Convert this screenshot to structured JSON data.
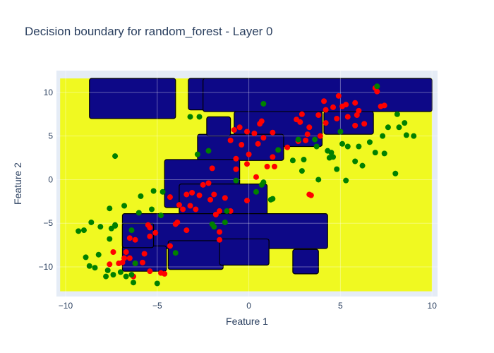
{
  "chart_data": {
    "type": "scatter",
    "title": "Decision boundary for random_forest - Layer 0",
    "xlabel": "Feature 1",
    "ylabel": "Feature 2",
    "xlim": [
      -10.5,
      10.3
    ],
    "ylim": [
      -13.4,
      12.5
    ],
    "x_ticks": [
      -10,
      -5,
      0,
      5,
      10
    ],
    "x_tick_labels": [
      "−10",
      "−5",
      "0",
      "5",
      "10"
    ],
    "y_ticks": [
      -10,
      -5,
      0,
      5,
      10
    ],
    "y_tick_labels": [
      "−10",
      "−5",
      "0",
      "5",
      "10"
    ],
    "grid": true,
    "legend": "none",
    "colors": {
      "plot_bg": "#e5ecf6",
      "region_yellow": "#f0f921",
      "region_navy": "#0d0887",
      "boundary": "#000000",
      "class_red": "#ff0000",
      "class_green": "#008000",
      "text": "#2a3f5f"
    },
    "decision_regions": {
      "extent": {
        "x": [
          -10.3,
          10
        ],
        "y": [
          -12.8,
          11.6
        ]
      },
      "background_class": "yellow",
      "navy_rectangles": [
        [
          -8.7,
          11.6,
          -4.0,
          7.0
        ],
        [
          -3.3,
          11.6,
          -2.1,
          8.0
        ],
        [
          -2.5,
          11.6,
          10.0,
          7.8
        ],
        [
          -0.8,
          7.8,
          4.0,
          3.8
        ],
        [
          -2.8,
          5.2,
          1.9,
          2.2
        ],
        [
          -2.3,
          7.2,
          -1.0,
          5.0
        ],
        [
          4.1,
          7.8,
          6.8,
          5.2
        ],
        [
          -4.6,
          2.3,
          -0.5,
          -3.2
        ],
        [
          -3.8,
          -0.5,
          1.0,
          -4.2
        ],
        [
          -6.9,
          -3.9,
          4.3,
          -7.9
        ],
        [
          -4.4,
          -7.0,
          -1.4,
          -10.3
        ],
        [
          -1.6,
          -6.8,
          1.1,
          -9.8
        ],
        [
          2.4,
          -8.0,
          3.8,
          -10.8
        ],
        [
          -6.9,
          -7.6,
          -4.5,
          -10.5
        ],
        [
          -6.9,
          -5.0,
          -5.2,
          -7.8
        ]
      ]
    },
    "series": [
      {
        "class": "red",
        "x": [
          6.9,
          7.0,
          7.2,
          7.4,
          4.9,
          5.3,
          5.8,
          4.6,
          5.1,
          6.0,
          5.9,
          3.8,
          2.9,
          3.3,
          2.6,
          4.2,
          4.8,
          5.4,
          4.1,
          2.8,
          3.2,
          3.1,
          2.7,
          3.9,
          1.3,
          0.6,
          0.7,
          0.3,
          -0.5,
          -0.8,
          -0.1,
          0.8,
          -1.0,
          0.5,
          -0.4,
          0.0,
          -0.7,
          2.1,
          1.3,
          1.4,
          1.0,
          -0.7,
          -0.1,
          0.4,
          -2.0,
          -2.2,
          -2.5,
          -2.7,
          -3.1,
          -3.4,
          -4.3,
          -3.8,
          -2.1,
          -3.2,
          -1.3,
          -1.6,
          -1.8,
          -2.9,
          -3.6,
          -3.9,
          -4.0,
          -3.4,
          -1.6,
          -1.6,
          -1.0,
          -0.1,
          -1.9,
          -5.5,
          -5.4,
          -5.1,
          -5.4,
          -5.7,
          -6.2,
          -6.5,
          -6.7,
          -6.8,
          -6.9,
          -7.4,
          -6.2,
          -5.8,
          -6.5,
          -6.3,
          -7.1,
          -7.6,
          -5.4,
          -4.8,
          -4.6,
          -4.3,
          3.3,
          3.4,
          4.2,
          5.8,
          6.3
        ],
        "y": [
          10.5,
          10.1,
          8.4,
          8.5,
          9.6,
          8.6,
          8.8,
          8.3,
          8.4,
          7.9,
          7.4,
          7.4,
          7.5,
          6.0,
          6.9,
          6.5,
          7.0,
          7.2,
          9.0,
          6.6,
          5.2,
          4.5,
          4.4,
          5.0,
          5.4,
          6.4,
          6.7,
          5.3,
          6.0,
          5.7,
          5.5,
          4.8,
          4.5,
          4.1,
          4.0,
          2.9,
          2.4,
          3.7,
          2.6,
          1.5,
          1.5,
          1.2,
          1.8,
          0.3,
          1.3,
          -0.4,
          -0.6,
          -1.8,
          -1.5,
          -1.7,
          -2.0,
          -2.9,
          -2.3,
          -3.0,
          -2.1,
          -3.6,
          -4.0,
          -3.4,
          -3.4,
          -4.9,
          -5.1,
          -5.8,
          -6.0,
          -6.9,
          -3.6,
          -2.4,
          -1.7,
          -5.2,
          -5.5,
          -6.1,
          -6.5,
          -8.5,
          -6.9,
          -6.7,
          -8.3,
          -9.0,
          -9.5,
          -8.3,
          -9.6,
          -9.5,
          -9.0,
          -11.1,
          -9.6,
          -9.7,
          -10.5,
          -10.7,
          -10.8,
          -7.6,
          -1.7,
          -1.8,
          8.0,
          6.2,
          6.4
        ],
        "marker_color": "#ff0000"
      },
      {
        "class": "green",
        "x": [
          7.0,
          0.8,
          -3.2,
          -2.7,
          -2.2,
          -2.8,
          -7.3,
          8.1,
          8.2,
          8.5,
          8.6,
          9.0,
          7.6,
          7.3,
          7.4,
          8.0,
          6.6,
          6.9,
          6.0,
          5.8,
          6.2,
          5.0,
          5.4,
          4.3,
          4.4,
          4.6,
          4.8,
          3.8,
          3.6,
          4.5,
          5.1,
          3.0,
          2.9,
          2.4,
          5.3,
          3.7,
          2.7,
          1.6,
          1.3,
          1.2,
          0.8,
          0.7,
          0.4,
          -1.2,
          -2.0,
          -1.3,
          -1.9,
          -0.7,
          -4.8,
          -5.3,
          -5.9,
          -5.2,
          -4.7,
          -6.8,
          -7.6,
          -6.0,
          -6.4,
          -7.3,
          -7.6,
          -8.1,
          -8.6,
          -9.0,
          -9.3,
          -8.9,
          -8.7,
          -8.4,
          -8.2,
          -7.8,
          -7.4,
          -7.0,
          -6.2,
          -6.7,
          -6.4,
          -7.7,
          -7.5,
          -6.3,
          -5.0,
          -4.0,
          -7.3
        ],
        "y": [
          10.7,
          8.7,
          7.2,
          7.2,
          3.3,
          2.9,
          2.7,
          7.5,
          6.0,
          6.5,
          5.1,
          5.0,
          6.0,
          5.0,
          3.0,
          0.7,
          4.3,
          3.1,
          3.8,
          2.1,
          1.6,
          5.5,
          3.8,
          3.3,
          2.5,
          2.6,
          1.2,
          0.0,
          4.6,
          3.1,
          4.1,
          2.3,
          1.0,
          2.2,
          -0.1,
          3.8,
          4.6,
          3.4,
          -2.2,
          -2.3,
          -0.3,
          -0.6,
          -1.4,
          -3.6,
          -5.1,
          -4.9,
          -5.4,
          -0.1,
          -4.1,
          -3.4,
          -1.9,
          -1.3,
          -1.4,
          -3.0,
          -3.3,
          -3.8,
          -5.8,
          -5.3,
          -6.8,
          -5.4,
          -4.9,
          -5.8,
          -5.9,
          -8.9,
          -9.9,
          -10.1,
          -8.6,
          -11.1,
          -10.9,
          -10.6,
          -9.6,
          -11.1,
          -10.9,
          -10.4,
          -5.6,
          -11.8,
          -11.9,
          -8.4,
          -5.2
        ],
        "marker_color": "#008000"
      }
    ]
  }
}
